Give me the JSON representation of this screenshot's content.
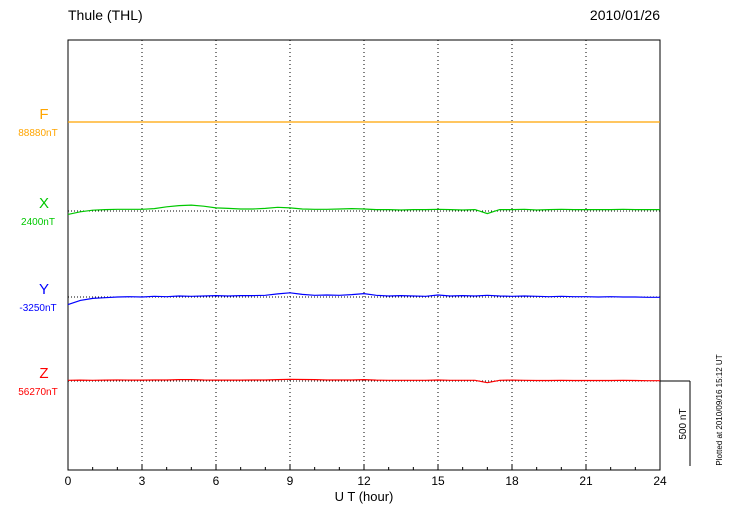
{
  "header": {
    "title": "Thule (THL)",
    "date": "2010/01/26"
  },
  "chart_data": {
    "type": "line",
    "title": "Thule (THL)",
    "date": "2010/01/26",
    "xlabel": "U T (hour)",
    "xlim": [
      0,
      24
    ],
    "x_ticks": [
      0,
      3,
      6,
      9,
      12,
      15,
      18,
      21,
      24
    ],
    "x_step_hours": 0.5,
    "grid": "vertical-dotted-at-3h",
    "background": "#ffffff",
    "frame_color": "#000000",
    "scale_bar": {
      "label": "500 nT",
      "nT": 500
    },
    "plotted_note": "Plotted at 2010/09/16 15:12 UT",
    "series": [
      {
        "name": "F",
        "baseline_label": "88880nT",
        "color": "#ffa500",
        "offsets_nT": [
          0,
          0,
          0,
          0,
          0,
          0,
          0,
          0,
          0,
          0,
          0,
          0,
          0,
          0,
          0,
          0,
          0,
          0,
          0,
          0,
          0,
          0,
          0,
          0,
          0,
          0,
          0,
          0,
          0,
          0,
          0,
          0,
          0,
          0,
          0,
          0,
          0,
          0,
          0,
          0,
          0,
          0,
          0,
          0,
          0,
          0,
          0,
          0,
          0
        ]
      },
      {
        "name": "X",
        "baseline_label": "2400nT",
        "color": "#00c800",
        "offsets_nT": [
          -20,
          -5,
          5,
          8,
          10,
          10,
          10,
          14,
          25,
          32,
          35,
          28,
          18,
          15,
          12,
          12,
          15,
          22,
          18,
          12,
          10,
          10,
          12,
          14,
          12,
          8,
          8,
          6,
          8,
          8,
          10,
          8,
          6,
          8,
          -15,
          8,
          8,
          10,
          6,
          8,
          10,
          8,
          8,
          8,
          8,
          10,
          8,
          8,
          8
        ]
      },
      {
        "name": "Y",
        "baseline_label": "-3250nT",
        "color": "#0000ff",
        "offsets_nT": [
          -45,
          -20,
          -8,
          -4,
          0,
          2,
          0,
          4,
          2,
          6,
          4,
          6,
          8,
          6,
          8,
          8,
          10,
          18,
          25,
          15,
          10,
          12,
          10,
          14,
          20,
          10,
          6,
          8,
          6,
          4,
          12,
          6,
          8,
          6,
          10,
          6,
          4,
          6,
          4,
          2,
          4,
          2,
          2,
          0,
          2,
          0,
          0,
          -2,
          -2
        ]
      },
      {
        "name": "Z",
        "baseline_label": "56270nT",
        "color": "#ff0000",
        "offsets_nT": [
          4,
          5,
          4,
          5,
          6,
          5,
          5,
          6,
          6,
          8,
          8,
          6,
          5,
          5,
          5,
          6,
          6,
          8,
          10,
          9,
          8,
          6,
          6,
          6,
          8,
          5,
          4,
          4,
          4,
          4,
          6,
          4,
          4,
          4,
          -10,
          4,
          5,
          4,
          3,
          3,
          4,
          3,
          3,
          3,
          3,
          4,
          3,
          2,
          2
        ]
      }
    ]
  }
}
